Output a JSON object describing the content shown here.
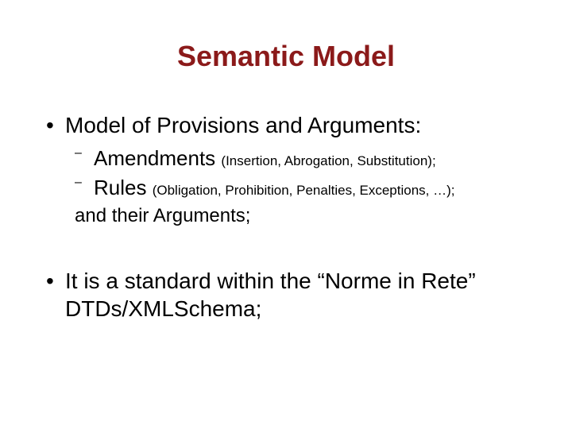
{
  "title": {
    "text": "Semantic Model",
    "color": "#8b1a1a",
    "fontsize": 36
  },
  "bullets": {
    "b1": {
      "text": "Model of Provisions and Arguments:",
      "color": "#000000",
      "fontsize": 28
    },
    "b1a": {
      "main": "Amendments ",
      "detail": "(Insertion, Abrogation, Substitution);",
      "color": "#000000",
      "fontsize_main": 26,
      "fontsize_detail": 17
    },
    "b1b": {
      "main": "Rules ",
      "detail": "(Obligation, Prohibition, Penalties, Exceptions, …);",
      "color": "#000000",
      "fontsize_main": 26,
      "fontsize_detail": 17
    },
    "b1c": {
      "text": "and their Arguments;",
      "color": "#000000",
      "fontsize": 24
    },
    "b2": {
      "text": "It is a standard within the “Norme in Rete” DTDs/XMLSchema;",
      "color": "#000000",
      "fontsize": 28
    }
  },
  "background_color": "#ffffff"
}
